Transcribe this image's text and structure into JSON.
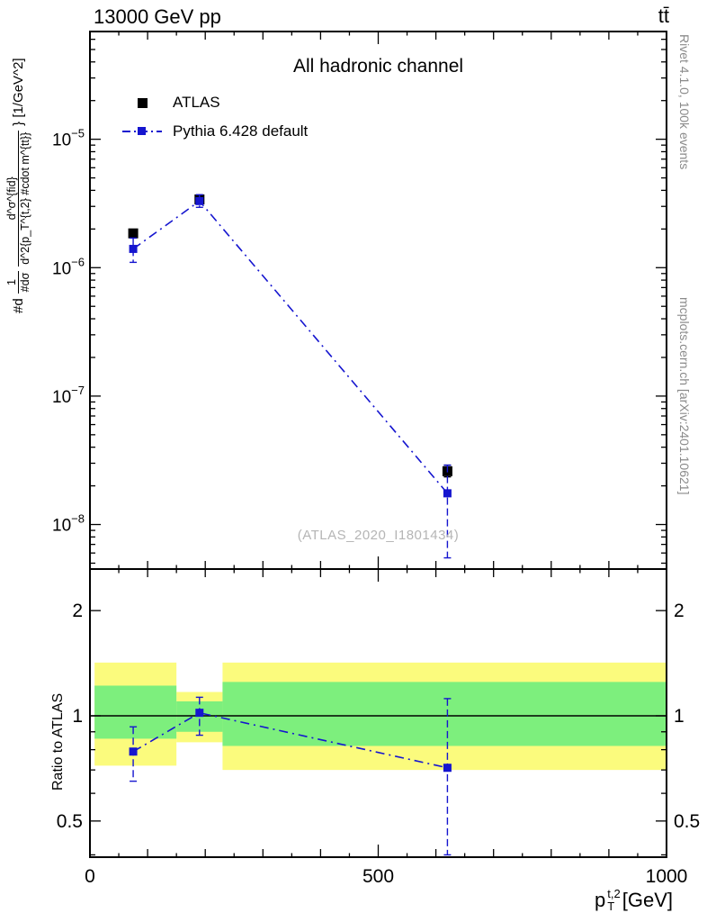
{
  "header": {
    "title": "13000 GeV pp",
    "process": "tt̄"
  },
  "side_captions": {
    "rivet": "Rivet 4.1.0,  100k events",
    "mcplots": "mcplots.cern.ch [arXiv:2401.10621]"
  },
  "plot": {
    "watermark": "(ATLAS_2020_I1801434)",
    "ratio_axis_label": "Ratio to ATLAS",
    "xaxis_title": {
      "base": "p",
      "sup": "t,2",
      "sub": "T",
      "unit": " [GeV]"
    },
    "yaxis_title": {
      "prefix": "#d",
      "frac1_num": "1",
      "frac1_den": "#dσ",
      "frac2_num": "d^σ^{fid}",
      "frac2_den": "d^2{p_T^{t,2} #cdot m^{tt}}",
      "suffix": "} [1/GeV^2]"
    }
  },
  "legend": {
    "items": [
      {
        "label": "ATLAS",
        "marker": "filled-square",
        "color": "#000000"
      },
      {
        "label": "Pythia 6.428 default",
        "marker": "square-on-dashdot-line",
        "color": "#1515cf"
      }
    ]
  },
  "colors": {
    "pythia_blue": "#1515cf",
    "band_yellow": "#fbfb7d",
    "band_green": "#7def7d",
    "watermark_gray": "#b5b5b5",
    "caption_gray": "#8a8a8a"
  },
  "chart_data": {
    "type": "line",
    "title": "All hadronic channel",
    "xlabel": "p_T^{t,2} [GeV]",
    "ylabel": "#d 1/#dσ · d^σ^{fid}/d^2{p_T^{t,2} #cdot m^{tt}} [1/GeV^2]",
    "xlim": [
      0,
      1000
    ],
    "x_ticks_labeled": [
      0,
      500,
      1000
    ],
    "legend_position": "top-left",
    "grid": false,
    "main_panel": {
      "yscale": "log",
      "ylim": [
        4.5e-09,
        6.9e-05
      ],
      "ytick_exponents": [
        -5,
        -6,
        -7,
        -8
      ],
      "series": [
        {
          "name": "ATLAS",
          "type": "scatter",
          "marker": "square",
          "color": "#000000",
          "x": [
            75,
            190,
            620
          ],
          "y": [
            1.85e-06,
            3.4e-06,
            2.6e-08
          ],
          "y_err_low": [
            1.75e-06,
            3.25e-06,
            2.35e-08
          ],
          "y_err_high": [
            1.95e-06,
            3.55e-06,
            2.9e-08
          ]
        },
        {
          "name": "Pythia 6.428 default",
          "type": "line+scatter",
          "marker": "square",
          "color": "#1515cf",
          "linestyle": "dashdot",
          "x": [
            75,
            190,
            620
          ],
          "y": [
            1.4e-06,
            3.3e-06,
            1.75e-08
          ],
          "y_err_low": [
            1.1e-06,
            2.95e-06,
            5.5e-09
          ],
          "y_err_high": [
            1.7e-06,
            3.7e-06,
            2.9e-08
          ]
        }
      ]
    },
    "ratio_panel": {
      "yscale": "log",
      "ylim": [
        0.394,
        2.63
      ],
      "yticks": [
        0.5,
        1,
        2
      ],
      "yticks_minor": [
        0.4,
        0.6,
        0.7,
        0.8,
        0.9
      ],
      "reference_line": 1,
      "bands": [
        {
          "x_range": [
            8,
            150
          ],
          "yellow": [
            0.72,
            1.42
          ],
          "green": [
            0.86,
            1.22
          ]
        },
        {
          "x_range": [
            150,
            230
          ],
          "yellow": [
            0.84,
            1.17
          ],
          "green": [
            0.9,
            1.1
          ]
        },
        {
          "x_range": [
            230,
            1000
          ],
          "yellow": [
            0.7,
            1.42
          ],
          "green": [
            0.82,
            1.25
          ]
        }
      ],
      "points": {
        "x": [
          75,
          190,
          620
        ],
        "y": [
          0.79,
          1.02,
          0.71
        ],
        "y_err_low": [
          0.65,
          0.88,
          0.4
        ],
        "y_err_high": [
          0.93,
          1.13,
          1.12
        ]
      }
    }
  }
}
